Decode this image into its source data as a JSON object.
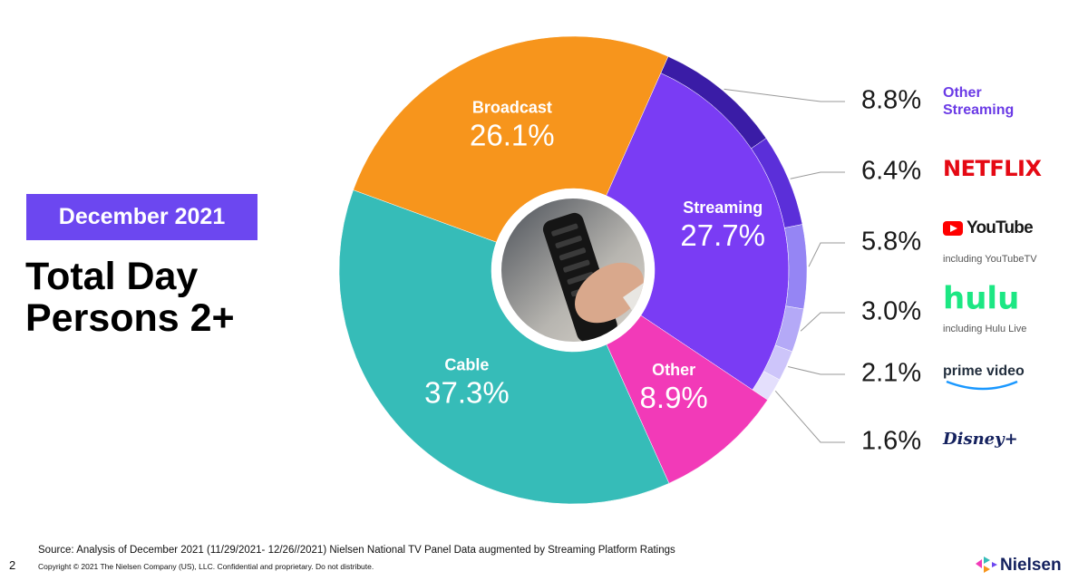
{
  "badge": "December 2021",
  "heading": "Total Day Persons 2+",
  "chart_data": {
    "type": "pie",
    "donut": true,
    "categories": [
      "Streaming",
      "Other",
      "Cable",
      "Broadcast"
    ],
    "values": [
      27.7,
      8.9,
      37.3,
      26.1
    ],
    "value_labels": [
      "27.7%",
      "8.9%",
      "37.3%",
      "26.1%"
    ],
    "colors": [
      "#7a3cf4",
      "#f23ab8",
      "#36bcb8",
      "#f7951c"
    ],
    "breakdown": {
      "of": "Streaming",
      "names": [
        "Other Streaming",
        "NETFLIX",
        "YouTube",
        "hulu",
        "prime video",
        "Disney+"
      ],
      "values": [
        8.8,
        6.4,
        5.8,
        3.0,
        2.1,
        1.6
      ],
      "value_labels": [
        "8.8%",
        "6.4%",
        "5.8%",
        "3.0%",
        "2.1%",
        "1.6%"
      ],
      "colors": [
        "#3a1ca6",
        "#5b2fd9",
        "#9585f4",
        "#b4a9f7",
        "#cdc5fa",
        "#e4dffc"
      ],
      "label_colors": [
        "#6b3be6",
        "#e50914",
        "#1a1a1a",
        "#1ce783",
        "#232f3e",
        "#14215e"
      ],
      "notes": {
        "2": "including YouTubeTV",
        "3": "including Hulu Live"
      }
    }
  },
  "footer": {
    "source": "Source: Analysis of December 2021 (11/29/2021- 12/26//2021)  Nielsen National TV Panel Data augmented by Streaming Platform Ratings",
    "copyright": "Copyright © 2021 The Nielsen Company (US), LLC. Confidential and proprietary. Do not distribute.",
    "page": "2",
    "brand": "Nielsen"
  }
}
